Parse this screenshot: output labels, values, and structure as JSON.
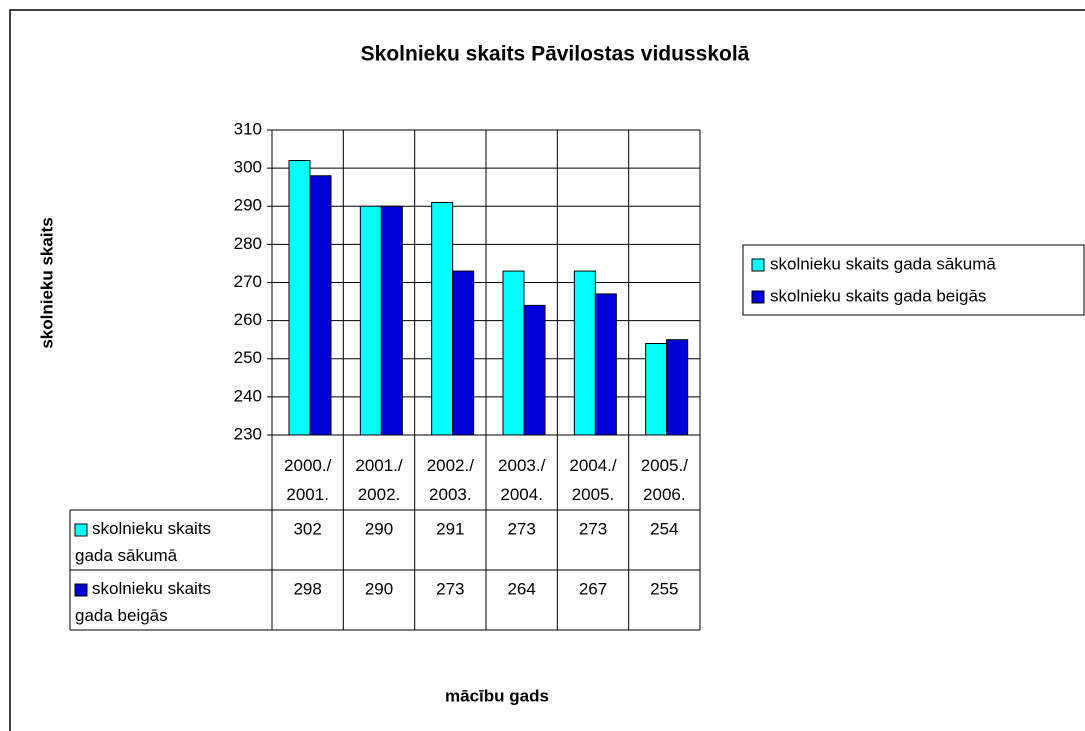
{
  "chart_data": {
    "type": "bar",
    "title": "Skolnieku skaits Pāvilostas vidusskolā",
    "x_label": "mācību gads",
    "y_label": "skolnieku skaits",
    "categories": [
      "2000./\n2001.",
      "2001./\n2002.",
      "2002./\n2003.",
      "2003./\n2004.",
      "2004./\n2005.",
      "2005./\n2006."
    ],
    "series": [
      {
        "name": "skolnieku skaits gada sākumā",
        "color": "#00ffff",
        "values": [
          302,
          290,
          291,
          273,
          273,
          254
        ]
      },
      {
        "name": "skolnieku skaits gada beigās",
        "color": "#0000d8",
        "values": [
          298,
          290,
          273,
          264,
          267,
          255
        ]
      }
    ],
    "ylim": [
      230,
      310
    ],
    "yticks": [
      230,
      240,
      250,
      260,
      270,
      280,
      290,
      300,
      310
    ],
    "grid": true,
    "legend": "right",
    "data_table": true
  }
}
